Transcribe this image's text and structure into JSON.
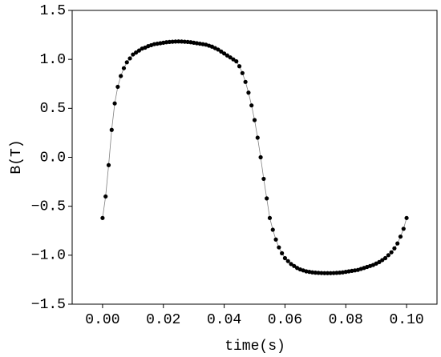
{
  "chart_data": {
    "type": "line",
    "xlabel": "time(s)",
    "ylabel": "B(T)",
    "x": [
      0,
      0.001,
      0.002,
      0.003,
      0.004,
      0.005,
      0.006,
      0.007,
      0.008,
      0.009,
      0.01,
      0.011,
      0.012,
      0.013,
      0.014,
      0.015,
      0.016,
      0.017,
      0.018,
      0.019,
      0.02,
      0.021,
      0.022,
      0.023,
      0.024,
      0.025,
      0.026,
      0.027,
      0.028,
      0.029,
      0.03,
      0.031,
      0.032,
      0.033,
      0.034,
      0.035,
      0.036,
      0.037,
      0.038,
      0.039,
      0.04,
      0.041,
      0.042,
      0.043,
      0.044,
      0.045,
      0.046,
      0.047,
      0.048,
      0.049,
      0.05,
      0.051,
      0.052,
      0.053,
      0.054,
      0.055,
      0.056,
      0.057,
      0.058,
      0.059,
      0.06,
      0.061,
      0.062,
      0.063,
      0.064,
      0.065,
      0.066,
      0.067,
      0.068,
      0.069,
      0.07,
      0.071,
      0.072,
      0.073,
      0.074,
      0.075,
      0.076,
      0.077,
      0.078,
      0.079,
      0.08,
      0.081,
      0.082,
      0.083,
      0.084,
      0.085,
      0.086,
      0.087,
      0.088,
      0.089,
      0.09,
      0.091,
      0.092,
      0.093,
      0.094,
      0.095,
      0.096,
      0.097,
      0.098,
      0.099,
      0.1
    ],
    "series": [
      {
        "name": "B",
        "color": "#000000",
        "line_color": "#808080",
        "values": [
          -0.62,
          -0.4,
          -0.08,
          0.28,
          0.55,
          0.72,
          0.83,
          0.91,
          0.97,
          1.01,
          1.05,
          1.07,
          1.09,
          1.11,
          1.12,
          1.135,
          1.145,
          1.155,
          1.16,
          1.165,
          1.17,
          1.175,
          1.178,
          1.18,
          1.182,
          1.183,
          1.182,
          1.18,
          1.178,
          1.175,
          1.17,
          1.165,
          1.16,
          1.155,
          1.15,
          1.14,
          1.13,
          1.115,
          1.1,
          1.08,
          1.06,
          1.04,
          1.02,
          1.0,
          0.98,
          0.93,
          0.86,
          0.77,
          0.66,
          0.53,
          0.38,
          0.2,
          0.0,
          -0.22,
          -0.42,
          -0.62,
          -0.74,
          -0.84,
          -0.92,
          -0.98,
          -1.03,
          -1.06,
          -1.09,
          -1.11,
          -1.13,
          -1.145,
          -1.155,
          -1.165,
          -1.17,
          -1.175,
          -1.178,
          -1.18,
          -1.182,
          -1.183,
          -1.183,
          -1.183,
          -1.182,
          -1.18,
          -1.178,
          -1.175,
          -1.17,
          -1.165,
          -1.16,
          -1.155,
          -1.15,
          -1.14,
          -1.13,
          -1.12,
          -1.11,
          -1.1,
          -1.085,
          -1.07,
          -1.05,
          -1.03,
          -1.0,
          -0.97,
          -0.93,
          -0.88,
          -0.81,
          -0.73,
          -0.62
        ]
      }
    ],
    "xlim": [
      -0.01,
      0.11
    ],
    "xticks": [
      {
        "value": 0,
        "label": "0.00"
      },
      {
        "value": 0.02,
        "label": "0.02"
      },
      {
        "value": 0.04,
        "label": "0.04"
      },
      {
        "value": 0.06,
        "label": "0.06"
      },
      {
        "value": 0.08,
        "label": "0.08"
      },
      {
        "value": 0.1,
        "label": "0.10"
      }
    ],
    "ylim": [
      -1.5,
      1.5
    ],
    "yticks": [
      {
        "value": -1.5,
        "label": "−1.5"
      },
      {
        "value": -1,
        "label": "−1.0"
      },
      {
        "value": -0.5,
        "label": "−0.5"
      },
      {
        "value": 0,
        "label": "0.0"
      },
      0.5,
      {
        "value": 1,
        "label": "1.0"
      },
      1.5
    ],
    "grid": false
  }
}
